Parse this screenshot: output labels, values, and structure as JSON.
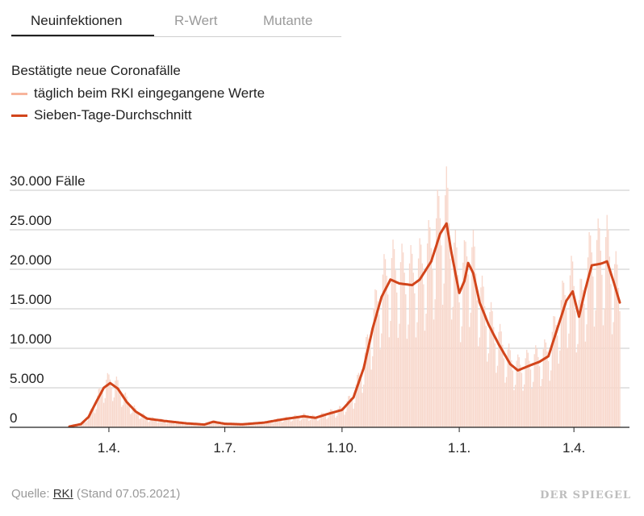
{
  "tabs": [
    {
      "label": "Neuinfektionen",
      "active": true
    },
    {
      "label": "R-Wert",
      "active": false
    },
    {
      "label": "Mutante",
      "active": false
    }
  ],
  "headline": "Bestätigte neue Coronafälle",
  "legend": {
    "daily": {
      "label": "täglich beim RKI eingegangene Werte",
      "color": "#f7b59c"
    },
    "average": {
      "label": "Sieben-Tage-Durchschnitt",
      "color": "#d2451b"
    }
  },
  "source": {
    "prefix": "Quelle:",
    "link": "RKI",
    "suffix": "(Stand 07.05.2021)"
  },
  "brand": "DER SPIEGEL",
  "colors": {
    "bars": "#f8d8cc",
    "line": "#d2451b",
    "grid": "#c8c8c8",
    "axis": "#222222"
  },
  "chart_data": {
    "type": "bar",
    "grid": true,
    "ylim": [
      0,
      30000
    ],
    "y_ticks": [
      {
        "value": 0,
        "label": "0"
      },
      {
        "value": 5000,
        "label": "5.000"
      },
      {
        "value": 10000,
        "label": "10.000"
      },
      {
        "value": 15000,
        "label": "15.000"
      },
      {
        "value": 20000,
        "label": "20.000"
      },
      {
        "value": 25000,
        "label": "25.000"
      },
      {
        "value": 30000,
        "label": "30.000 Fälle"
      }
    ],
    "x_ticks": [
      {
        "date": "2020-04-01",
        "label": "1.4."
      },
      {
        "date": "2020-07-01",
        "label": "1.7."
      },
      {
        "date": "2020-10-01",
        "label": "1.10."
      },
      {
        "date": "2021-01-01",
        "label": "1.1."
      },
      {
        "date": "2021-04-01",
        "label": "1.4."
      }
    ],
    "xlim": [
      "2020-03-01",
      "2021-05-07"
    ],
    "series": [
      {
        "name": "Sieben-Tage-Durchschnitt",
        "type": "line",
        "points": [
          [
            "2020-03-01",
            100
          ],
          [
            "2020-03-10",
            400
          ],
          [
            "2020-03-16",
            1300
          ],
          [
            "2020-03-22",
            3200
          ],
          [
            "2020-03-28",
            5000
          ],
          [
            "2020-04-02",
            5600
          ],
          [
            "2020-04-08",
            4900
          ],
          [
            "2020-04-15",
            3200
          ],
          [
            "2020-04-22",
            2000
          ],
          [
            "2020-05-01",
            1100
          ],
          [
            "2020-05-15",
            800
          ],
          [
            "2020-06-01",
            500
          ],
          [
            "2020-06-15",
            350
          ],
          [
            "2020-06-22",
            700
          ],
          [
            "2020-07-01",
            450
          ],
          [
            "2020-07-15",
            380
          ],
          [
            "2020-08-01",
            600
          ],
          [
            "2020-08-15",
            1000
          ],
          [
            "2020-09-01",
            1400
          ],
          [
            "2020-09-10",
            1200
          ],
          [
            "2020-09-20",
            1700
          ],
          [
            "2020-10-01",
            2200
          ],
          [
            "2020-10-10",
            3800
          ],
          [
            "2020-10-18",
            7500
          ],
          [
            "2020-10-25",
            12500
          ],
          [
            "2020-11-01",
            16500
          ],
          [
            "2020-11-08",
            18700
          ],
          [
            "2020-11-15",
            18200
          ],
          [
            "2020-11-25",
            18000
          ],
          [
            "2020-12-01",
            18700
          ],
          [
            "2020-12-10",
            21000
          ],
          [
            "2020-12-17",
            24500
          ],
          [
            "2020-12-22",
            25800
          ],
          [
            "2020-12-26",
            22000
          ],
          [
            "2021-01-01",
            17000
          ],
          [
            "2021-01-05",
            18500
          ],
          [
            "2021-01-08",
            20800
          ],
          [
            "2021-01-12",
            19500
          ],
          [
            "2021-01-17",
            15800
          ],
          [
            "2021-01-24",
            13000
          ],
          [
            "2021-02-01",
            10500
          ],
          [
            "2021-02-10",
            8000
          ],
          [
            "2021-02-16",
            7200
          ],
          [
            "2021-02-25",
            7800
          ],
          [
            "2021-03-05",
            8300
          ],
          [
            "2021-03-12",
            9000
          ],
          [
            "2021-03-20",
            13000
          ],
          [
            "2021-03-26",
            16000
          ],
          [
            "2021-03-31",
            17200
          ],
          [
            "2021-04-05",
            14000
          ],
          [
            "2021-04-10",
            17500
          ],
          [
            "2021-04-15",
            20500
          ],
          [
            "2021-04-22",
            20700
          ],
          [
            "2021-04-27",
            21000
          ],
          [
            "2021-05-02",
            18500
          ],
          [
            "2021-05-07",
            15800
          ]
        ]
      }
    ],
    "bars": {
      "name": "täglich beim RKI eingegangene Werte",
      "weekly_pattern": [
        0.72,
        1.15,
        1.28,
        1.22,
        1.08,
        0.93,
        0.62
      ],
      "start": "2020-03-01",
      "end": "2021-05-07"
    }
  }
}
